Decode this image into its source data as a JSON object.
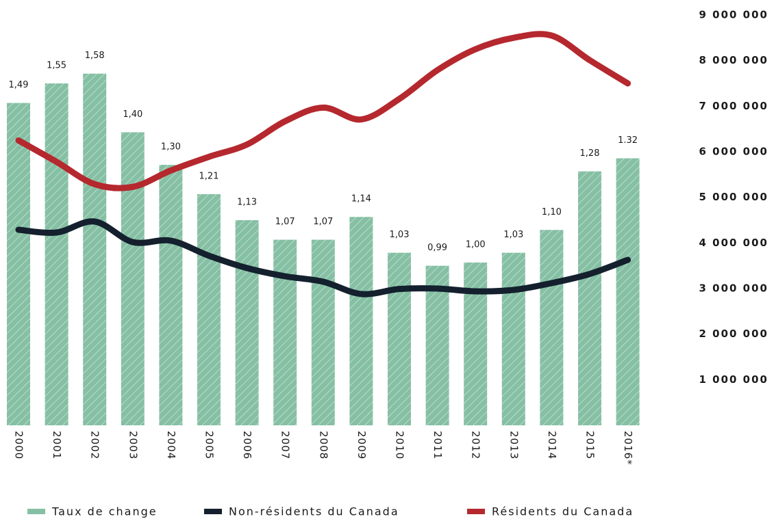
{
  "chart_data": {
    "type": "bar-line",
    "categories": [
      "2000",
      "2001",
      "2002",
      "2003",
      "2004",
      "2005",
      "2006",
      "2007",
      "2008",
      "2009",
      "2010",
      "2011",
      "2012",
      "2013",
      "2014",
      "2015",
      "2016*"
    ],
    "bar_series": {
      "name": "Taux de change",
      "color": "#86c0a4",
      "values": [
        1.49,
        1.55,
        1.58,
        1.4,
        1.3,
        1.21,
        1.13,
        1.07,
        1.07,
        1.14,
        1.03,
        0.99,
        1.0,
        1.03,
        1.1,
        1.28,
        1.32
      ],
      "value_labels": [
        "1,49",
        "1,55",
        "1,58",
        "1,40",
        "1,30",
        "1,21",
        "1,13",
        "1,07",
        "1,07",
        "1,14",
        "1,03",
        "0,99",
        "1,00",
        "1,03",
        "1,10",
        "1,28",
        "1.32"
      ]
    },
    "ylim": [
      0.5,
      1.76
    ],
    "series": [
      {
        "name": "Non-résidents du Canada",
        "color": "#14202e",
        "axis": "y2",
        "values": [
          4290000,
          4230000,
          4470000,
          4020000,
          4050000,
          3720000,
          3450000,
          3270000,
          3150000,
          2880000,
          2990000,
          3000000,
          2940000,
          2970000,
          3120000,
          3320000,
          3630000
        ]
      },
      {
        "name": "Résidents du Canada",
        "color": "#b5282e",
        "axis": "y2",
        "values": [
          6250000,
          5780000,
          5290000,
          5230000,
          5590000,
          5890000,
          6160000,
          6670000,
          6970000,
          6710000,
          7160000,
          7790000,
          8250000,
          8500000,
          8550000,
          8010000,
          7500000
        ]
      }
    ],
    "y2lim": [
      0,
      9000000
    ],
    "y2ticks": [
      {
        "value": 1000000,
        "label": "1 000 000"
      },
      {
        "value": 2000000,
        "label": "2 000 000"
      },
      {
        "value": 3000000,
        "label": "3 000 000"
      },
      {
        "value": 4000000,
        "label": "4 000 000"
      },
      {
        "value": 5000000,
        "label": "5 000 000"
      },
      {
        "value": 6000000,
        "label": "6 000 000"
      },
      {
        "value": 7000000,
        "label": "7 000 000"
      },
      {
        "value": 8000000,
        "label": "8 000 000"
      },
      {
        "value": 9000000,
        "label": "9 000 000"
      }
    ]
  }
}
